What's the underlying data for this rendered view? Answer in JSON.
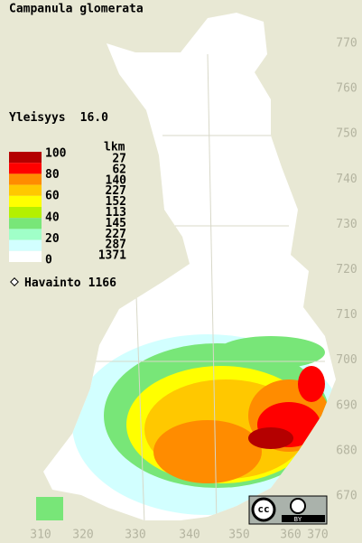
{
  "title": "Campanula glomerata",
  "frequency": {
    "label": "Yleisyys",
    "value": "16.0"
  },
  "legend": {
    "count_header": "lkm",
    "scale_labels": [
      100,
      80,
      60,
      40,
      20,
      0
    ],
    "classes": [
      {
        "color": "#b40000",
        "count": 27
      },
      {
        "color": "#ff0000",
        "count": 62
      },
      {
        "color": "#ff8c00",
        "count": 140
      },
      {
        "color": "#ffc800",
        "count": 227
      },
      {
        "color": "#ffff00",
        "count": 152
      },
      {
        "color": "#b4f000",
        "count": 113
      },
      {
        "color": "#78e678",
        "count": 145
      },
      {
        "color": "#a0ffc8",
        "count": 227
      },
      {
        "color": "#d2ffff",
        "count": 287
      },
      {
        "color": "#ffffff",
        "count": 1371
      }
    ]
  },
  "observations": {
    "label": "Havainto",
    "count": 1166
  },
  "x_axis": [
    310,
    320,
    330,
    340,
    350,
    360,
    370
  ],
  "y_axis": [
    770,
    760,
    750,
    740,
    730,
    720,
    710,
    700,
    690,
    680,
    670
  ],
  "license": {
    "cc": "cc",
    "by": "BY"
  }
}
